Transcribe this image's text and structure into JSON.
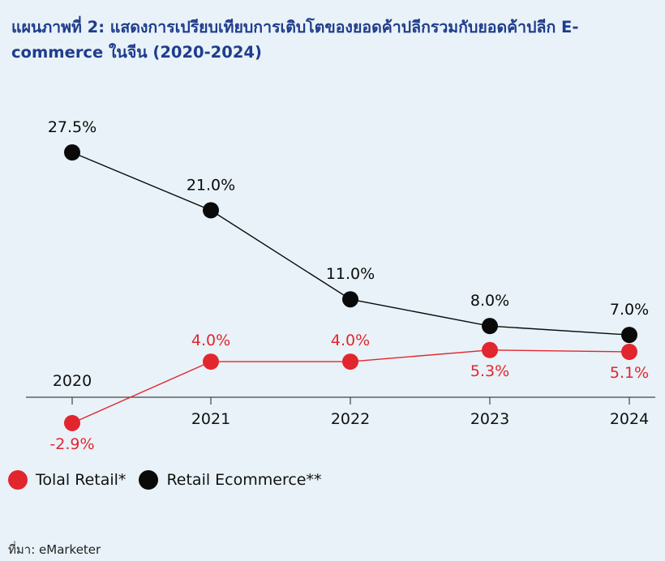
{
  "title": "แผนภาพที่ 2: แสดงการเปรียบเทียบการเติบโตของยอดค้าปลีกรวมกับยอดค้าปลีก E-commerce ในจีน (2020-2024)",
  "source": "ที่มา: eMarketer",
  "colors": {
    "total_retail": "#e2262d",
    "retail_ecommerce": "#0a0a0a",
    "background": "#e8f2f8",
    "title": "#1f3c8c"
  },
  "chart_data": {
    "type": "line",
    "x": [
      "2020",
      "2021",
      "2022",
      "2023",
      "2024"
    ],
    "series": [
      {
        "name": "Tolal Retail*",
        "values": [
          -2.9,
          4.0,
          4.0,
          5.3,
          5.1
        ],
        "labels": [
          "-2.9%",
          "4.0%",
          "4.0%",
          "5.3%",
          "5.1%"
        ],
        "color": "#e2262d"
      },
      {
        "name": "Retail Ecommerce**",
        "values": [
          27.5,
          21.0,
          11.0,
          8.0,
          7.0
        ],
        "labels": [
          "27.5%",
          "21.0%",
          "11.0%",
          "8.0%",
          "7.0%"
        ],
        "color": "#0a0a0a"
      }
    ],
    "ylim": [
      -3,
      30
    ],
    "grid": false,
    "legend_position": "bottom-left"
  }
}
